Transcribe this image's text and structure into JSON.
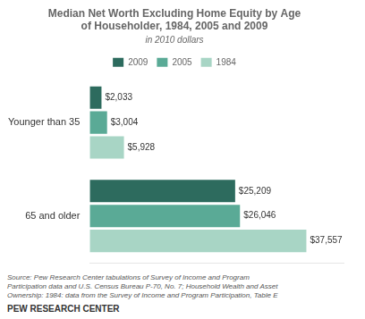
{
  "chart_data": {
    "type": "bar",
    "orientation": "horizontal",
    "title": "Median Net Worth Excluding Home Equity by Age\nof Householder, 1984, 2005 and 2009",
    "subtitle": "in 2010 dollars",
    "categories": [
      "Younger than 35",
      "65 and older"
    ],
    "series": [
      {
        "name": "2009",
        "color": "#2d6b5e",
        "values": [
          2033,
          25209
        ],
        "value_labels": [
          "$2,033",
          "$25,209"
        ]
      },
      {
        "name": "2005",
        "color": "#5aaa96",
        "values": [
          3004,
          26046
        ],
        "value_labels": [
          "$3,004",
          "$26,046"
        ]
      },
      {
        "name": "1984",
        "color": "#a8d5c5",
        "values": [
          5928,
          37557
        ],
        "value_labels": [
          "$5,928",
          "$37,557"
        ]
      }
    ],
    "xlim": [
      0,
      44000
    ],
    "grid": false,
    "legend": "top",
    "data_labels": true,
    "tick_labels": "y",
    "annotations": [
      "Source:  Pew Research Center tabulations of Survey of Income  and Program",
      "Participation data and U.S. Census Bureau P-70, No. 7; Household Wealth and Asset",
      "Ownership: 1984: data from the Survey of Income and Program Participation, Table E",
      "PEW RESEARCH CENTER"
    ]
  }
}
